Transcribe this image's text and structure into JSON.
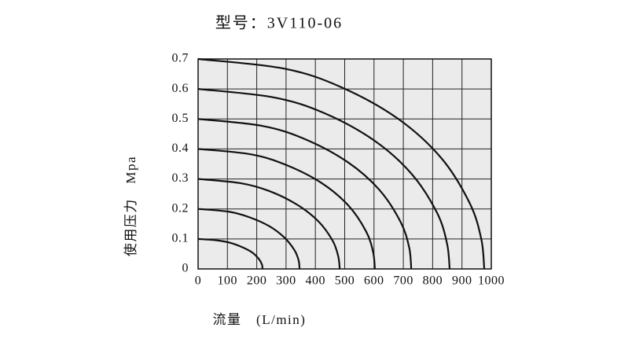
{
  "chart_data": {
    "type": "line",
    "title": "型号：3V110-06",
    "x_label": "流量　(L/min)",
    "y_label": "使用压力　Mpa",
    "xlim": [
      0,
      1000
    ],
    "ylim": [
      0,
      0.7
    ],
    "xticks": [
      0,
      100,
      200,
      300,
      400,
      500,
      600,
      700,
      800,
      900,
      1000
    ],
    "yticks": [
      0,
      0.1,
      0.2,
      0.3,
      0.4,
      0.5,
      0.6,
      0.7
    ],
    "grid": true,
    "color": "#111111",
    "background": "#ebebeb",
    "series": [
      {
        "x": [
          0,
          66,
          110,
          154,
          187,
          209,
          218,
          220
        ],
        "values": [
          0.1,
          0.095,
          0.087,
          0.071,
          0.053,
          0.031,
          0.014,
          0
        ]
      },
      {
        "x": [
          0,
          104,
          173,
          242,
          294,
          329,
          343,
          346
        ],
        "values": [
          0.2,
          0.191,
          0.173,
          0.143,
          0.105,
          0.062,
          0.028,
          0
        ]
      },
      {
        "x": [
          0,
          145,
          242,
          338,
          411,
          459,
          478,
          483
        ],
        "values": [
          0.3,
          0.286,
          0.26,
          0.214,
          0.158,
          0.094,
          0.042,
          0
        ]
      },
      {
        "x": [
          0,
          181,
          302,
          422,
          513,
          573,
          597,
          603
        ],
        "values": [
          0.4,
          0.382,
          0.346,
          0.286,
          0.211,
          0.125,
          0.056,
          0
        ]
      },
      {
        "x": [
          0,
          218,
          364,
          509,
          618,
          691,
          720,
          727
        ],
        "values": [
          0.5,
          0.477,
          0.433,
          0.357,
          0.264,
          0.156,
          0.071,
          0
        ]
      },
      {
        "x": [
          0,
          257,
          429,
          601,
          729,
          815,
          849,
          858
        ],
        "values": [
          0.6,
          0.572,
          0.52,
          0.428,
          0.316,
          0.187,
          0.085,
          0
        ]
      },
      {
        "x": [
          0,
          293,
          488,
          683,
          830,
          927,
          966,
          976
        ],
        "values": [
          0.7,
          0.668,
          0.606,
          0.5,
          0.369,
          0.218,
          0.099,
          0
        ]
      }
    ]
  }
}
